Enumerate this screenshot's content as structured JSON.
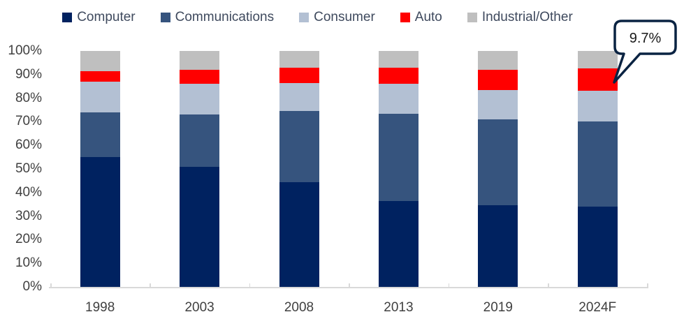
{
  "chart_data": {
    "type": "bar",
    "subtype": "100%-stacked-column",
    "title": "",
    "categories": [
      "1998",
      "2003",
      "2008",
      "2013",
      "2019",
      "2024F"
    ],
    "series": [
      {
        "name": "Computer",
        "color": "#002260",
        "values": [
          55,
          51,
          44.5,
          36.5,
          34.5,
          34
        ]
      },
      {
        "name": "Communications",
        "color": "#36547E",
        "values": [
          19,
          22,
          30,
          37,
          36.5,
          36
        ]
      },
      {
        "name": "Consumer",
        "color": "#B3C0D3",
        "values": [
          13,
          13,
          12,
          12.5,
          12.5,
          13
        ]
      },
      {
        "name": "Auto",
        "color": "#FF0000",
        "values": [
          4.5,
          6,
          6.5,
          7,
          8.5,
          9.7
        ]
      },
      {
        "name": "Industrial/Other",
        "color": "#BFBFBF",
        "values": [
          8.5,
          8,
          7,
          7,
          8,
          7.3
        ]
      }
    ],
    "y_ticks": [
      "0%",
      "10%",
      "20%",
      "30%",
      "40%",
      "50%",
      "60%",
      "70%",
      "80%",
      "90%",
      "100%"
    ],
    "ylim": [
      0,
      100
    ],
    "grid": false,
    "legend_position": "top",
    "annotation": {
      "text": "9.7%",
      "target_series": "Auto",
      "target_category": "2024F"
    },
    "colors": {
      "axis_line": "#D9D9D9",
      "axis_text": "#404040",
      "legend_text": "#3F4A5E",
      "callout_border": "#0A2342",
      "callout_fill": "#FFFFFF"
    }
  }
}
